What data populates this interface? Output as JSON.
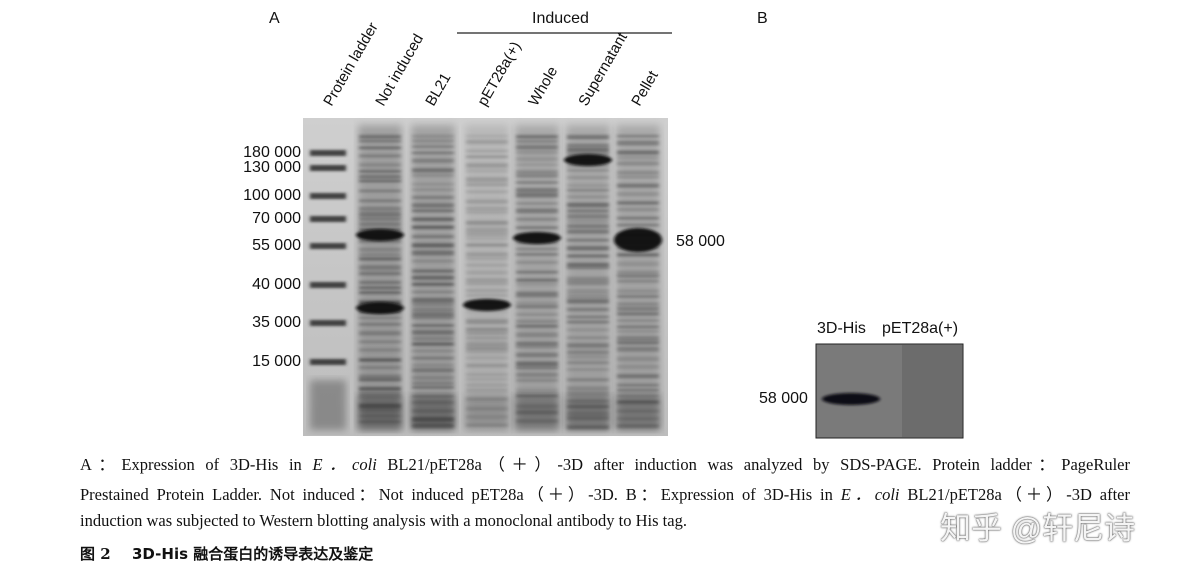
{
  "panel_a": {
    "label": "A",
    "group_label": "Induced",
    "lane_labels": [
      "Protein ladder",
      "Not induced",
      "BL21",
      "pET28a(+)",
      "Whole",
      "Supernatant",
      "Pellet"
    ],
    "markers": [
      "180 000",
      "130 000",
      "100 000",
      "70 000",
      "55 000",
      "40 000",
      "35 000",
      "15 000"
    ],
    "band_label": "58 000"
  },
  "panel_b": {
    "label": "B",
    "lane_labels": [
      "3D-His",
      "pET28a(+)"
    ],
    "marker": "58 000"
  },
  "caption": {
    "lines": [
      [
        "A：Expression of 3D-His in ",
        "E．coli",
        " BL21/pET28a（＋）-3D after induction was analyzed by SDS-PAGE. Protein ladder：PageRuler"
      ],
      [
        "Prestained Protein Ladder. Not induced：Not induced pET28a（＋）-3D. B：Expression of 3D-His in ",
        "E．coli",
        " BL21/pET28a（＋）-3D after"
      ],
      [
        "induction was subjected to Western blotting analysis with a monoclonal antibody to His tag."
      ]
    ]
  },
  "figure_title": {
    "number": "图 2",
    "text": "3D-His 融合蛋白的诱导表达及鉴定"
  },
  "watermark": "知乎 @轩尼诗"
}
